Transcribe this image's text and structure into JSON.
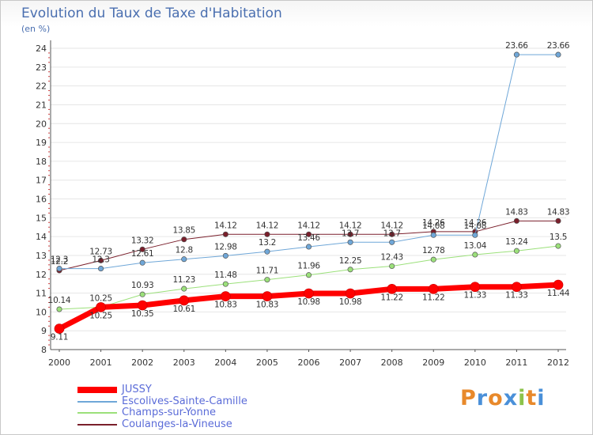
{
  "title": "Evolution du Taux de Taxe d'Habitation",
  "unit": "(en %)",
  "logo": {
    "letters": [
      "P",
      "r",
      "o",
      "x",
      "i",
      "t",
      "i"
    ],
    "colors": [
      "#e8892b",
      "#4a90d9",
      "#e8892b",
      "#4a90d9",
      "#8cc34a",
      "#e8892b",
      "#4a90d9"
    ]
  },
  "chart_data": {
    "type": "line",
    "title": "Evolution du Taux de Taxe d'Habitation",
    "ylabel": "(en %)",
    "xlabel": "",
    "ylim": [
      8,
      24
    ],
    "yticks": [
      8,
      9,
      10,
      11,
      12,
      13,
      14,
      15,
      16,
      17,
      18,
      19,
      20,
      21,
      22,
      23,
      24
    ],
    "categories": [
      "2000",
      "2001",
      "2002",
      "2003",
      "2004",
      "2005",
      "2006",
      "2007",
      "2008",
      "2009",
      "2010",
      "2011",
      "2012"
    ],
    "series": [
      {
        "name": "Coulanges-la-Vineuse",
        "color": "#7a1f2b",
        "width": 1,
        "labels_below": false,
        "values": [
          12.2,
          12.73,
          13.32,
          13.85,
          14.12,
          14.12,
          14.12,
          14.12,
          14.12,
          14.26,
          14.26,
          14.83,
          14.83
        ],
        "labels": [
          "12.2",
          "12.73",
          "13.32",
          "13.85",
          "14.12",
          "14.12",
          "14.12",
          "14.12",
          "14.12",
          "14.26",
          "14.26",
          "14.83",
          "14.83"
        ]
      },
      {
        "name": "Champs-sur-Yonne",
        "color": "#9be07a",
        "width": 1,
        "labels_below": false,
        "values": [
          10.14,
          10.25,
          10.93,
          11.23,
          11.48,
          11.71,
          11.96,
          12.25,
          12.43,
          12.78,
          13.04,
          13.24,
          13.5
        ],
        "labels": [
          "10.14",
          "10.25",
          "10.93",
          "11.23",
          "11.48",
          "11.71",
          "11.96",
          "12.25",
          "12.43",
          "12.78",
          "13.04",
          "13.24",
          "13.5"
        ]
      },
      {
        "name": "Escolives-Sainte-Camille",
        "color": "#6fa7d8",
        "width": 1,
        "labels_below": false,
        "values": [
          12.3,
          12.3,
          12.61,
          12.8,
          12.98,
          13.2,
          13.46,
          13.7,
          13.7,
          14.08,
          14.08,
          23.66,
          23.66
        ],
        "labels": [
          "12.3",
          "12.3",
          "12.61",
          "12.8",
          "12.98",
          "13.2",
          "13.46",
          "13.7",
          "13.7",
          "14.08",
          "14.08",
          "23.66",
          "23.66"
        ]
      },
      {
        "name": "JUSSY",
        "color": "#ff0000",
        "width": 7,
        "labels_below": true,
        "values": [
          9.11,
          10.25,
          10.35,
          10.61,
          10.83,
          10.83,
          10.98,
          10.98,
          11.22,
          11.22,
          11.33,
          11.33,
          11.44
        ],
        "labels": [
          "9.11",
          "10.25",
          "10.35",
          "10.61",
          "10.83",
          "10.83",
          "10.98",
          "10.98",
          "11.22",
          "11.22",
          "11.33",
          "11.33",
          "11.44"
        ]
      }
    ],
    "legend": [
      {
        "name": "JUSSY",
        "color": "#ff0000",
        "width": 8
      },
      {
        "name": "Escolives-Sainte-Camille",
        "color": "#6fa7d8",
        "width": 2
      },
      {
        "name": "Champs-sur-Yonne",
        "color": "#9be07a",
        "width": 2
      },
      {
        "name": "Coulanges-la-Vineuse",
        "color": "#7a1f2b",
        "width": 2
      }
    ]
  }
}
